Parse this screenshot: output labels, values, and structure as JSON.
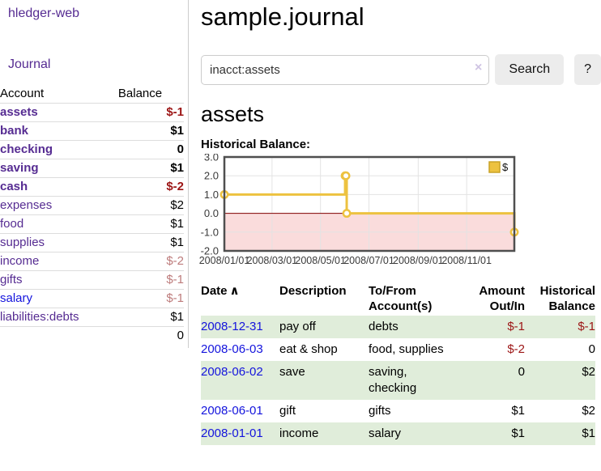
{
  "app": {
    "title": "hledger-web"
  },
  "icons": {
    "clear": "×",
    "sort_asc": "∧"
  },
  "sidebar": {
    "journal_link": "Journal",
    "columns": {
      "account": "Account",
      "balance": "Balance"
    },
    "accounts": [
      {
        "name": "assets",
        "balance": "$-1"
      },
      {
        "name": "bank",
        "balance": "$1"
      },
      {
        "name": "checking",
        "balance": "0"
      },
      {
        "name": "saving",
        "balance": "$1"
      },
      {
        "name": "cash",
        "balance": "$-2"
      },
      {
        "name": "expenses",
        "balance": "$2"
      },
      {
        "name": "food",
        "balance": "$1"
      },
      {
        "name": "supplies",
        "balance": "$1"
      },
      {
        "name": "income",
        "balance": "$-2"
      },
      {
        "name": "gifts",
        "balance": "$-1"
      },
      {
        "name": "salary",
        "balance": "$-1"
      },
      {
        "name": "liabilities:debts",
        "balance": "$1"
      }
    ],
    "total": "0"
  },
  "main": {
    "title": "sample.journal",
    "search": {
      "value": "inacct:assets",
      "button_label": "Search",
      "help_label": "?"
    },
    "account_heading": "assets",
    "chart_label": "Historical Balance:"
  },
  "chart_data": {
    "type": "line",
    "title": "Historical Balance:",
    "series": [
      {
        "name": "$",
        "color": "#edc240",
        "steps": true,
        "points": [
          [
            "2008-01-01",
            1
          ],
          [
            "2008-06-01",
            2
          ],
          [
            "2008-06-02",
            2
          ],
          [
            "2008-06-03",
            0
          ],
          [
            "2008-12-31",
            -1
          ]
        ]
      }
    ],
    "xlim": [
      "2008-01-01",
      "2008-12-31"
    ],
    "ylim": [
      -2,
      3
    ],
    "x_ticks": [
      {
        "date": "2008-01-01",
        "label": "2008/01/01"
      },
      {
        "date": "2008-03-01",
        "label": "2008/03/01"
      },
      {
        "date": "2008-05-01",
        "label": "2008/05/01"
      },
      {
        "date": "2008-07-01",
        "label": "2008/07/01"
      },
      {
        "date": "2008-09-01",
        "label": "2008/09/01"
      },
      {
        "date": "2008-11-01",
        "label": "2008/11/01"
      }
    ],
    "y_ticks": [
      "3.0",
      "2.0",
      "1.0",
      "0.0",
      "-1.0",
      "-2.0"
    ],
    "grid": true,
    "legend_position": "top-right",
    "negative_region_color": "#fadcdc",
    "zero_line_color": "#800000"
  },
  "register": {
    "columns": {
      "date": "Date",
      "description": "Description",
      "accounts": "To/From Account(s)",
      "amount": "Amount Out/In",
      "balance": "Historical Balance"
    },
    "rows": [
      {
        "date": "2008-12-31",
        "description": "pay off",
        "accounts": "debts",
        "amount": "$-1",
        "balance": "$-1"
      },
      {
        "date": "2008-06-03",
        "description": "eat & shop",
        "accounts": "food, supplies",
        "amount": "$-2",
        "balance": "0"
      },
      {
        "date": "2008-06-02",
        "description": "save",
        "accounts": "saving, checking",
        "amount": "0",
        "balance": "$2"
      },
      {
        "date": "2008-06-01",
        "description": "gift",
        "accounts": "gifts",
        "amount": "$1",
        "balance": "$2"
      },
      {
        "date": "2008-01-01",
        "description": "income",
        "accounts": "salary",
        "amount": "$1",
        "balance": "$1"
      }
    ]
  }
}
